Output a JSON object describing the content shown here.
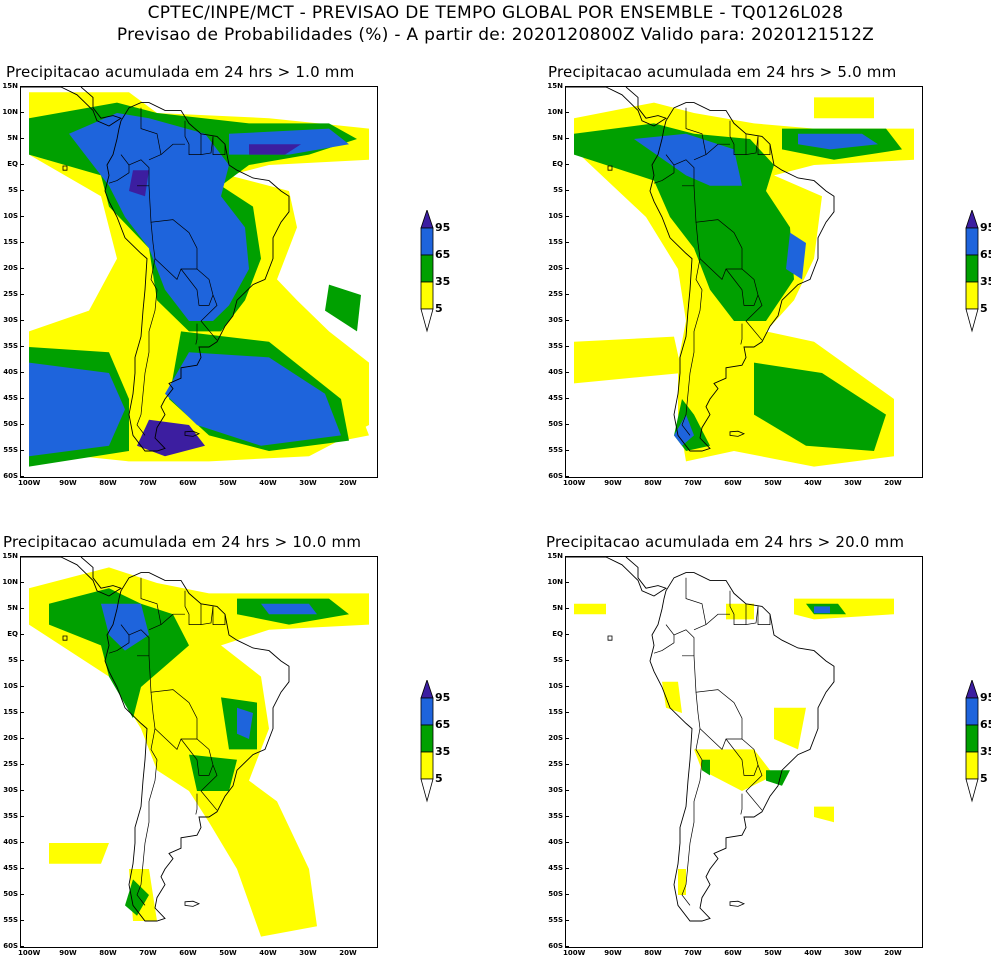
{
  "header": {
    "line1": "CPTEC/INPE/MCT - PREVISAO DE TEMPO GLOBAL POR ENSEMBLE - TQ0126L028",
    "line2": "Previsao de Probabilidades (%) -  A partir de: 2020120800Z  Valido para: 2020121512Z"
  },
  "panels": [
    {
      "title": "Precipitacao acumulada em 24 hrs > 1.0 mm",
      "level": 3
    },
    {
      "title": "Precipitacao acumulada em 24 hrs > 5.0 mm",
      "level": 2
    },
    {
      "title": "Precipitacao acumulada em 24 hrs > 10.0 mm",
      "level": 1
    },
    {
      "title": "Precipitacao acumulada em 24 hrs > 20.0 mm",
      "level": 0
    }
  ],
  "lat_ticks": [
    "15N",
    "10N",
    "5N",
    "EQ",
    "5S",
    "10S",
    "15S",
    "20S",
    "25S",
    "30S",
    "35S",
    "40S",
    "45S",
    "50S",
    "55S",
    "60S"
  ],
  "lon_ticks": [
    "100W",
    "90W",
    "80W",
    "70W",
    "60W",
    "50W",
    "40W",
    "30W",
    "20W"
  ],
  "colorbar": {
    "labels": [
      "95",
      "65",
      "35",
      "5"
    ],
    "colors": {
      "c5": "#ffff00",
      "c35": "#00a000",
      "c65": "#1e64dc",
      "c95": "#3c1ea0"
    }
  }
}
